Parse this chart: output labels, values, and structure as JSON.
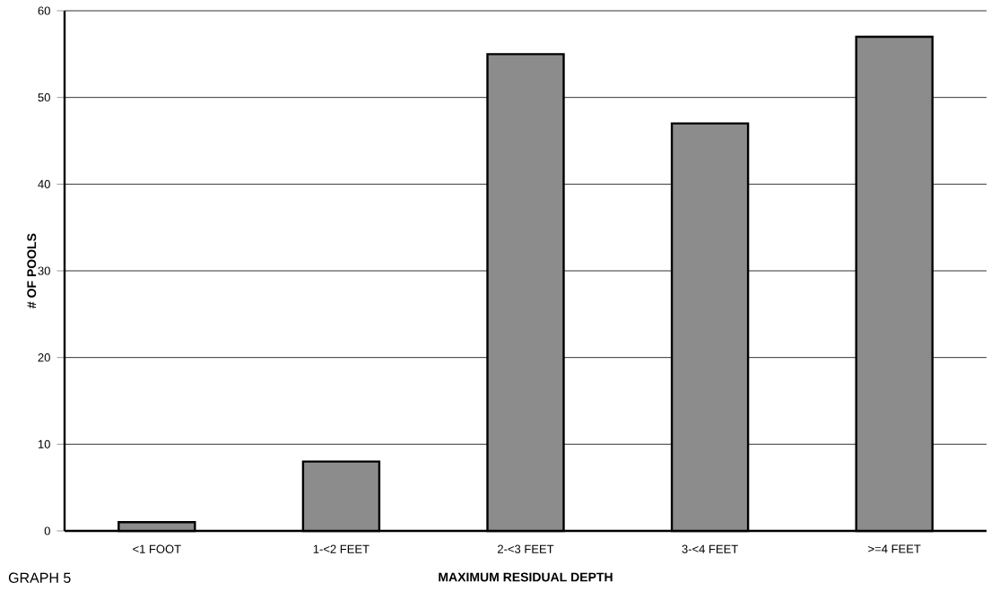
{
  "chart_data": {
    "type": "bar",
    "xlabel": "MAXIMUM RESIDUAL DEPTH",
    "ylabel": "# OF POOLS",
    "categories": [
      "<1 FOOT",
      "1-<2 FEET",
      "2-<3 FEET",
      "3-<4 FEET",
      ">=4 FEET"
    ],
    "values": [
      1,
      8,
      55,
      47,
      57
    ],
    "color": "#8c8c8c",
    "ylim": [
      0,
      60
    ],
    "yticks": [
      0,
      10,
      20,
      30,
      40,
      50,
      60
    ],
    "grid": "y",
    "annotations": [
      "GRAPH 5"
    ]
  }
}
